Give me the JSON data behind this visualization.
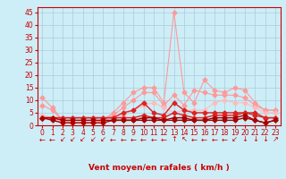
{
  "x": [
    0,
    1,
    2,
    3,
    4,
    5,
    6,
    7,
    8,
    9,
    10,
    11,
    12,
    13,
    14,
    15,
    16,
    17,
    18,
    19,
    20,
    21,
    22,
    23
  ],
  "series": [
    {
      "color": "#ff9999",
      "linewidth": 0.8,
      "markersize": 2.5,
      "values": [
        11,
        7,
        2,
        1,
        1,
        1,
        2,
        5,
        9,
        13,
        15,
        15,
        9,
        45,
        13,
        9,
        18,
        14,
        13,
        15,
        14,
        9,
        6,
        6
      ]
    },
    {
      "color": "#ff9999",
      "linewidth": 0.8,
      "markersize": 2.5,
      "values": [
        8,
        6,
        2,
        1,
        1,
        1,
        2,
        4,
        7,
        10,
        13,
        13,
        8,
        12,
        8,
        14,
        13,
        12,
        12,
        12,
        11,
        8,
        6,
        6
      ]
    },
    {
      "color": "#ffbbbb",
      "linewidth": 0.8,
      "markersize": 2.5,
      "values": [
        4,
        3,
        1,
        1,
        1,
        1,
        1,
        2,
        4,
        6,
        8,
        9,
        7,
        5,
        6,
        6,
        6,
        9,
        10,
        9,
        9,
        7,
        5,
        5
      ]
    },
    {
      "color": "#dd2222",
      "linewidth": 1.0,
      "markersize": 2.5,
      "values": [
        3,
        3,
        3,
        3,
        3,
        3,
        3,
        3,
        5,
        6,
        9,
        5,
        4,
        9,
        6,
        5,
        5,
        5,
        5,
        5,
        5,
        5,
        3,
        3
      ]
    },
    {
      "color": "#dd2222",
      "linewidth": 1.0,
      "markersize": 2.5,
      "values": [
        3,
        3,
        3,
        3,
        3,
        3,
        3,
        3,
        3,
        3,
        4,
        3,
        3,
        5,
        4,
        3,
        3,
        4,
        4,
        4,
        5,
        4,
        3,
        3
      ]
    },
    {
      "color": "#aa0000",
      "linewidth": 1.0,
      "markersize": 2.5,
      "values": [
        3,
        2,
        1,
        1,
        1,
        1,
        1,
        2,
        2,
        2,
        3,
        3,
        2,
        3,
        3,
        2,
        2,
        3,
        3,
        3,
        4,
        2,
        1,
        2
      ]
    },
    {
      "color": "#aa0000",
      "linewidth": 1.0,
      "markersize": 2.5,
      "values": [
        3,
        3,
        2,
        2,
        2,
        2,
        2,
        2,
        2,
        2,
        2,
        2,
        2,
        2,
        2,
        2,
        2,
        2,
        2,
        2,
        3,
        2,
        1,
        2
      ]
    }
  ],
  "arrow_symbols": [
    "←",
    "←",
    "↙",
    "↙",
    "↙",
    "↙",
    "↙",
    "←",
    "←",
    "←",
    "←",
    "←",
    "←",
    "↑",
    "↖",
    "←",
    "←",
    "←",
    "←",
    "↙",
    "↓",
    "↓",
    "↓",
    "↗"
  ],
  "xlabel": "Vent moyen/en rafales ( km/h )",
  "xlim": [
    -0.5,
    23.5
  ],
  "ylim": [
    0,
    47
  ],
  "yticks": [
    0,
    5,
    10,
    15,
    20,
    25,
    30,
    35,
    40,
    45
  ],
  "xticks": [
    0,
    1,
    2,
    3,
    4,
    5,
    6,
    7,
    8,
    9,
    10,
    11,
    12,
    13,
    14,
    15,
    16,
    17,
    18,
    19,
    20,
    21,
    22,
    23
  ],
  "bg_color": "#cdeef7",
  "grid_color": "#aaccdd",
  "axis_color": "#cc0000",
  "text_color": "#cc0000",
  "xlabel_fontsize": 6.5,
  "tick_fontsize": 5.5,
  "arrow_fontsize": 6.0
}
